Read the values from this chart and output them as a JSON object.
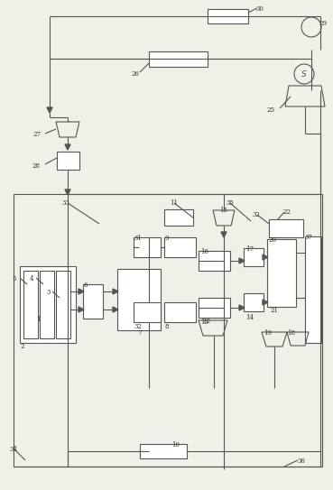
{
  "bg_color": "#f0efe8",
  "line_color": "#555555",
  "lw": 0.8,
  "fig_width": 3.69,
  "fig_height": 5.43
}
